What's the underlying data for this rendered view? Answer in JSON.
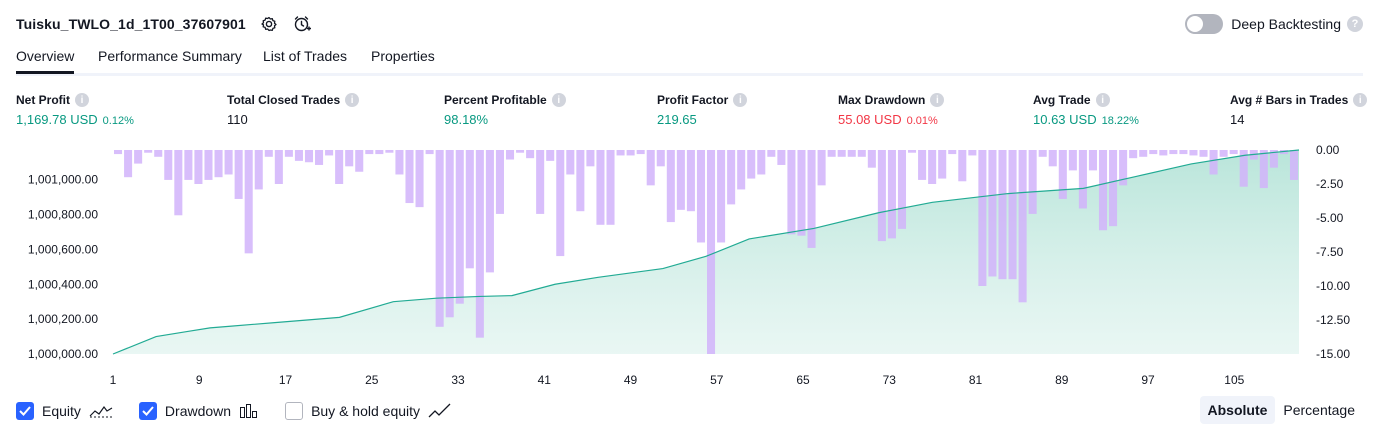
{
  "header": {
    "title": "Tuisku_TWLO_1d_1T00_37607901"
  },
  "deep_backtesting": {
    "label": "Deep Backtesting",
    "enabled": false
  },
  "tabs": [
    {
      "label": "Overview",
      "active": true
    },
    {
      "label": "Performance Summary",
      "active": false
    },
    {
      "label": "List of Trades",
      "active": false
    },
    {
      "label": "Properties",
      "active": false
    }
  ],
  "metrics": {
    "net_profit": {
      "label": "Net Profit",
      "value": "1,169.78 USD",
      "sub": "0.12%"
    },
    "total_closed_trades": {
      "label": "Total Closed Trades",
      "value": "110"
    },
    "percent_profitable": {
      "label": "Percent Profitable",
      "value": "98.18%"
    },
    "profit_factor": {
      "label": "Profit Factor",
      "value": "219.65"
    },
    "max_drawdown": {
      "label": "Max Drawdown",
      "value": "55.08 USD",
      "sub": "0.01%"
    },
    "avg_trade": {
      "label": "Avg Trade",
      "value": "10.63 USD",
      "sub": "18.22%"
    },
    "avg_bars": {
      "label": "Avg # Bars in Trades",
      "value": "14"
    }
  },
  "colors": {
    "equity_line": "#22ab94",
    "equity_fill": "#d7f0ea",
    "drawdown_bar": "#d1b3fa",
    "profit_green": "#089981",
    "loss_red": "#f23645",
    "accent_blue": "#2962ff"
  },
  "legend": {
    "equity": {
      "label": "Equity",
      "checked": true,
      "icon": "equity-line-icon"
    },
    "drawdown": {
      "label": "Drawdown",
      "checked": true,
      "icon": "drawdown-bars-icon"
    },
    "buy_hold": {
      "label": "Buy & hold equity",
      "checked": false,
      "icon": "buy-hold-line-icon"
    }
  },
  "mode": {
    "absolute": "Absolute",
    "percentage": "Percentage",
    "active": "absolute"
  },
  "chart_data": {
    "type": "area",
    "x_ticks": [
      "1",
      "9",
      "17",
      "25",
      "33",
      "41",
      "49",
      "57",
      "65",
      "73",
      "81",
      "89",
      "97",
      "105"
    ],
    "x_range": [
      1,
      111
    ],
    "left_axis": {
      "ticks": [
        "1,000,000.00",
        "1,000,200.00",
        "1,000,400.00",
        "1,000,600.00",
        "1,000,800.00",
        "1,001,000.00"
      ],
      "range": [
        1000000,
        1001170
      ]
    },
    "right_axis": {
      "ticks": [
        "0.00",
        "-2.50",
        "-5.00",
        "-7.50",
        "-10.00",
        "-12.50",
        "-15.00"
      ],
      "range": [
        -15,
        0
      ]
    },
    "series": [
      {
        "name": "Equity",
        "axis": "left",
        "points": [
          [
            1,
            1000000
          ],
          [
            5,
            1000100
          ],
          [
            8,
            1000130
          ],
          [
            10,
            1000150
          ],
          [
            12,
            1000160
          ],
          [
            16,
            1000180
          ],
          [
            22,
            1000210
          ],
          [
            27,
            1000300
          ],
          [
            31,
            1000320
          ],
          [
            35,
            1000330
          ],
          [
            38,
            1000335
          ],
          [
            42,
            1000400
          ],
          [
            46,
            1000440
          ],
          [
            52,
            1000490
          ],
          [
            56,
            1000560
          ],
          [
            60,
            1000660
          ],
          [
            66,
            1000720
          ],
          [
            72,
            1000810
          ],
          [
            77,
            1000870
          ],
          [
            84,
            1000920
          ],
          [
            91,
            1000950
          ],
          [
            96,
            1001020
          ],
          [
            101,
            1001090
          ],
          [
            106,
            1001140
          ],
          [
            111,
            1001170
          ]
        ]
      },
      {
        "name": "Drawdown",
        "axis": "right",
        "bars": [
          -0.3,
          -2,
          -1,
          -0.2,
          -0.5,
          -2.2,
          -4.8,
          -2.2,
          -2.5,
          -2.2,
          -2,
          -1.8,
          -3.6,
          -7.6,
          -2.9,
          -0.5,
          -2.5,
          -0.5,
          -0.8,
          -0.9,
          -1.1,
          -0.4,
          -2.5,
          -1.2,
          -1.6,
          -0.3,
          -0.3,
          -0.2,
          -1.8,
          -3.9,
          -4.2,
          -0.3,
          -13,
          -12.3,
          -11.3,
          -8.7,
          -13.8,
          -9,
          -4.7,
          -0.7,
          -0.2,
          -0.6,
          -4.7,
          -0.8,
          -7.8,
          -1.8,
          -4.5,
          -1.2,
          -5.5,
          -5.5,
          -0.4,
          -0.4,
          -0.3,
          -2.6,
          -1.2,
          -5.3,
          -4.4,
          -4.5,
          -6.8,
          -15,
          -6.8,
          -4,
          -2.9,
          -2.1,
          -1.8,
          -0.5,
          -1.1,
          -6.2,
          -6.3,
          -7.2,
          -2.6,
          -0.5,
          -0.5,
          -0.5,
          -0.5,
          -1.3,
          -6.7,
          -6.5,
          -5.8,
          -0.2,
          -2.2,
          -2.5,
          -2.1,
          -0.3,
          -2.3,
          -0.4,
          -10,
          -9.3,
          -9.5,
          -9.5,
          -11.2,
          -4.7,
          -0.5,
          -1.2,
          -3.6,
          -1.5,
          -4.3,
          -1.5,
          -5.9,
          -5.6,
          -2.6,
          -0.6,
          -0.5,
          -0.3,
          -0.4,
          -0.3,
          -0.3,
          -0.4,
          -0.5,
          -1.8,
          -0.5,
          -0.3,
          -2.7,
          -0.7,
          -2.8,
          -1.3,
          -0.3,
          -2.2
        ]
      }
    ],
    "grid": false,
    "legend_position": "bottom-left"
  }
}
